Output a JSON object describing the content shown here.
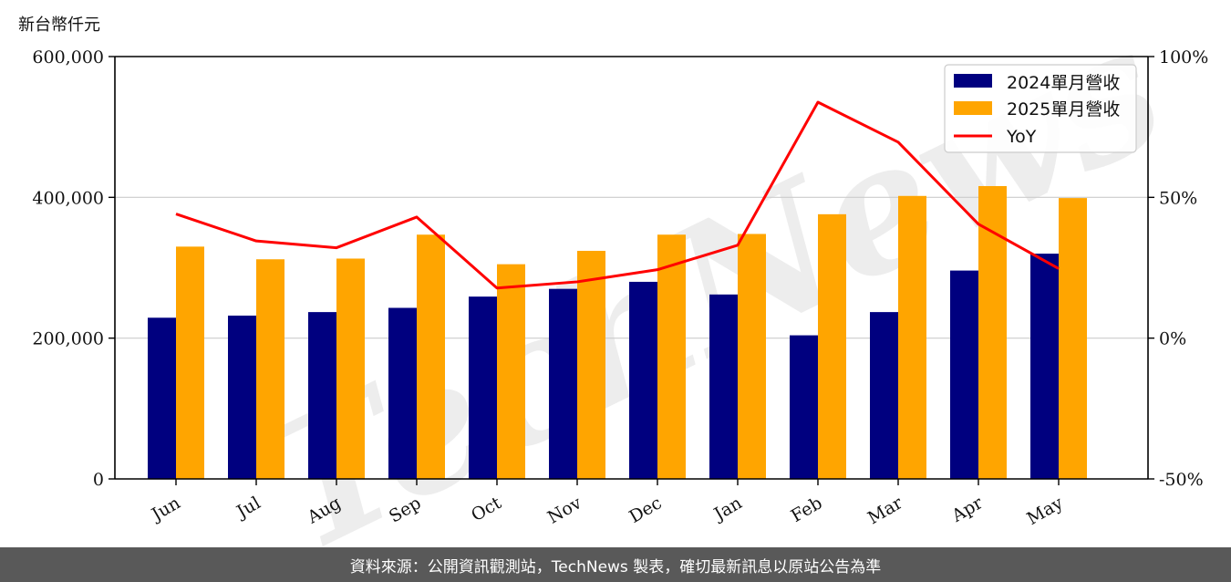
{
  "unit_label": "新台幣仟元",
  "footer": "資料來源：公開資訊觀測站，TechNews 製表，確切最新訊息以原站公告為準",
  "watermark": "TechNews",
  "colors": {
    "series_2024": "#00007f",
    "series_2025": "#ffa500",
    "yoy": "#ff0000",
    "grid": "#cccccc",
    "watermark": "#e8e8e8",
    "watermark_accent": "#fbe3e3",
    "footer_bg": "#595959"
  },
  "chart_data": {
    "type": "bar",
    "categories": [
      "Jun",
      "Jul",
      "Aug",
      "Sep",
      "Oct",
      "Nov",
      "Dec",
      "Jan",
      "Feb",
      "Mar",
      "Apr",
      "May"
    ],
    "series": [
      {
        "name": "2024單月營收",
        "values": [
          229000,
          232000,
          237000,
          243000,
          259000,
          270000,
          280000,
          262000,
          204000,
          237000,
          296000,
          320000
        ]
      },
      {
        "name": "2025單月營收",
        "values": [
          330000,
          312000,
          313000,
          347000,
          305000,
          324000,
          347000,
          348000,
          376000,
          402000,
          416000,
          399000
        ]
      }
    ],
    "line_series": {
      "name": "YoY",
      "axis": "right",
      "values": [
        44.1,
        34.5,
        32.1,
        43.0,
        17.8,
        20.0,
        24.3,
        33.0,
        83.8,
        69.6,
        40.5,
        24.7
      ]
    },
    "ylim": [
      0,
      600000
    ],
    "y_ticks": [
      "0",
      "200,000",
      "400,000",
      "600,000"
    ],
    "y2lim": [
      -50,
      100
    ],
    "y2_ticks": [
      "-50%",
      "0%",
      "50%",
      "100%"
    ],
    "grid": "horizontal",
    "legend_position": "top-right"
  }
}
